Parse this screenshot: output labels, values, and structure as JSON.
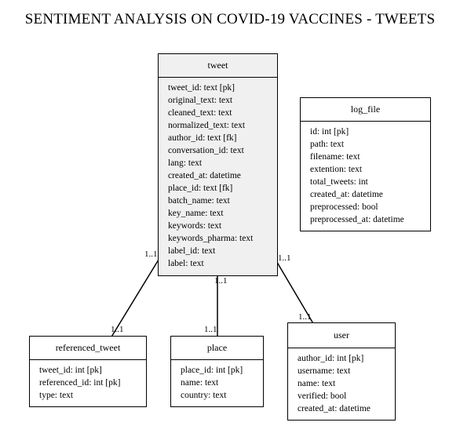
{
  "title": "SENTIMENT ANALYSIS ON COVID-19 VACCINES - TWEETS",
  "entities": {
    "tweet": {
      "name": "tweet",
      "attributes": [
        "tweet_id: text [pk]",
        "original_text: text",
        "cleaned_text: text",
        "normalized_text: text",
        "author_id: text [fk]",
        "conversation_id: text",
        "lang: text",
        "created_at: datetime",
        "place_id: text [fk]",
        "batch_name: text",
        "key_name: text",
        "keywords: text",
        "keywords_pharma: text",
        "label_id: text",
        "label: text"
      ]
    },
    "log_file": {
      "name": "log_file",
      "attributes": [
        "id: int [pk]",
        "path: text",
        "filename: text",
        "extention: text",
        "total_tweets: int",
        "created_at: datetime",
        "preprocessed: bool",
        "preprocessed_at: datetime"
      ]
    },
    "referenced_tweet": {
      "name": "referenced_tweet",
      "attributes": [
        "tweet_id: int [pk]",
        "referenced_id: int [pk]",
        "type: text"
      ]
    },
    "place": {
      "name": "place",
      "attributes": [
        "place_id: int [pk]",
        "name: text",
        "country: text"
      ]
    },
    "user": {
      "name": "user",
      "attributes": [
        "author_id: int [pk]",
        "username: text",
        "name: text",
        "verified: bool",
        "created_at: datetime"
      ]
    }
  },
  "relationships": {
    "tweet_referenced": {
      "from_card": "1..1",
      "to_card": "1..1"
    },
    "tweet_place": {
      "from_card": "1..1",
      "to_card": "1..1"
    },
    "tweet_user": {
      "from_card": "1..1",
      "to_card": "1..1"
    }
  }
}
